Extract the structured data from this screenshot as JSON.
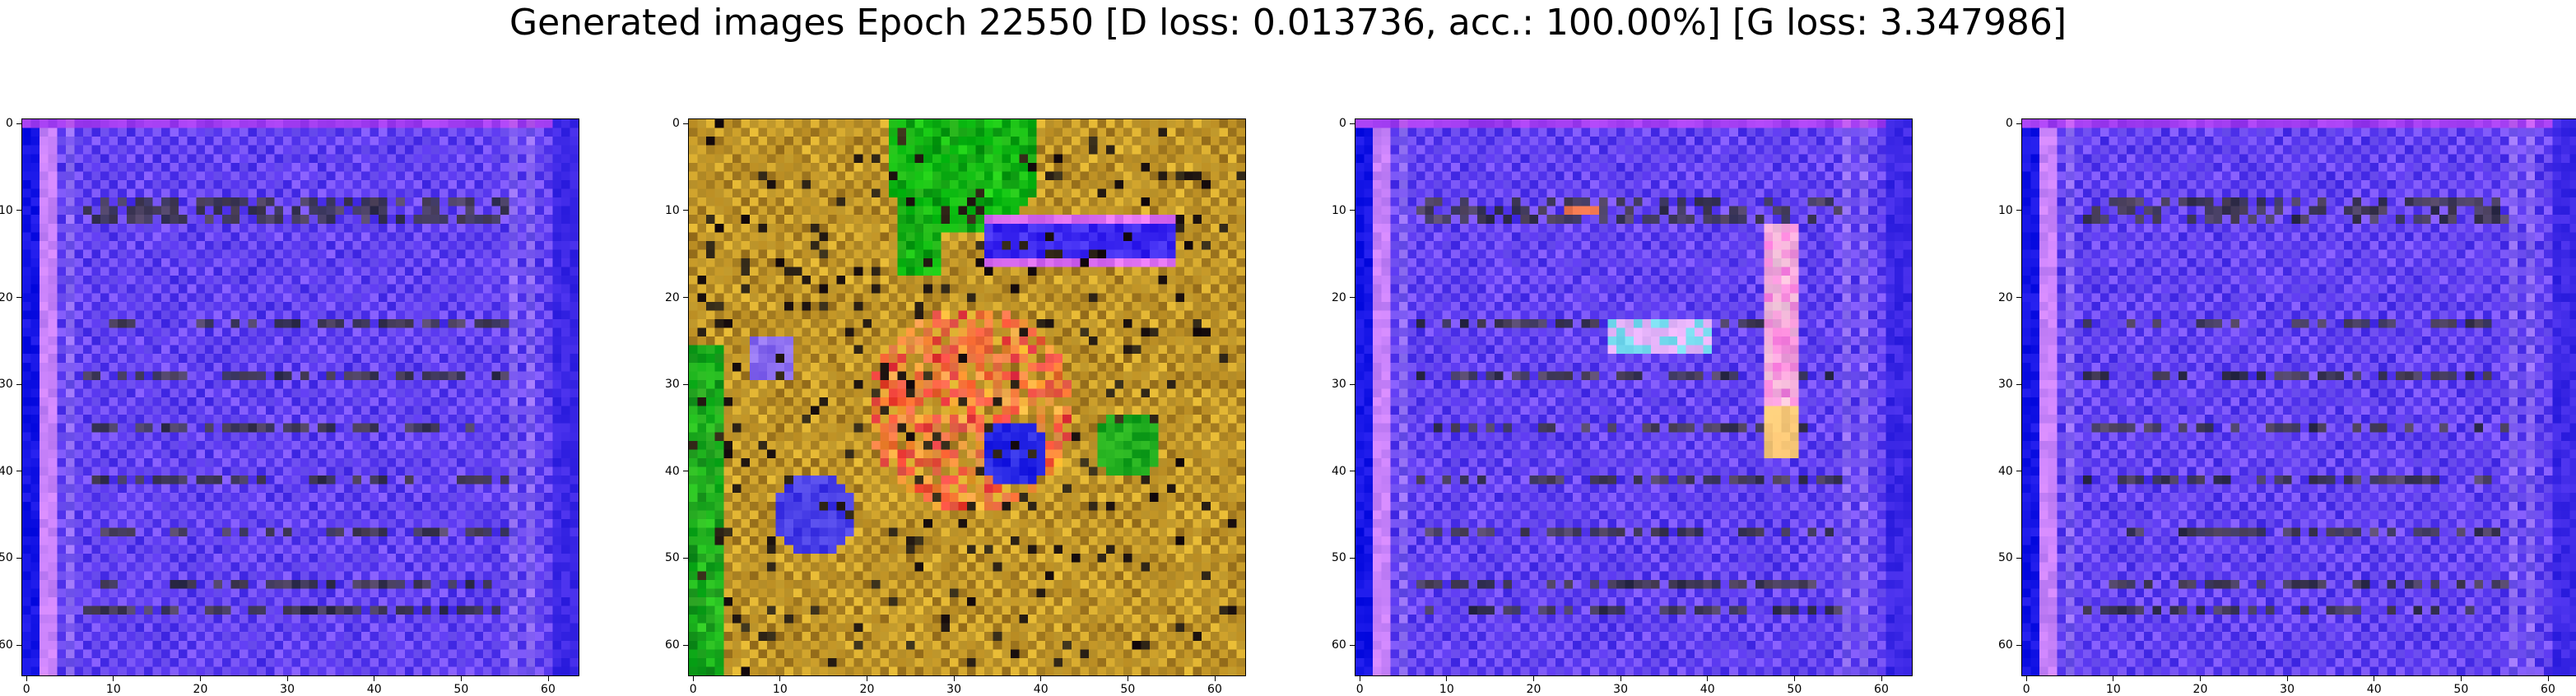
{
  "figure": {
    "title": "Generated images Epoch 22550 [D loss: 0.013736, acc.: 100.00%] [G loss: 3.347986]"
  },
  "panels": [
    {
      "id": "sample-1",
      "palette": "blue-violet",
      "dominant_color": "#5a3cf0",
      "content": "noisy generated image with dark horizontal streaks on blue/violet field"
    },
    {
      "id": "sample-2",
      "palette": "multicolor",
      "dominant_color": "#c8962a",
      "content": "noisy generated image with green, red, orange and blue blobs on ochre field"
    },
    {
      "id": "sample-3",
      "palette": "blue-violet",
      "dominant_color": "#5a3cf0",
      "content": "noisy generated image with dark horizontal streaks and a magenta/cyan bar"
    },
    {
      "id": "sample-4",
      "palette": "blue-violet",
      "dominant_color": "#5a3cf0",
      "content": "noisy generated image with dark horizontal streaks on blue/violet field"
    }
  ],
  "axes": {
    "x_ticks": [
      "0",
      "10",
      "20",
      "30",
      "40",
      "50",
      "60"
    ],
    "y_ticks": [
      "0",
      "10",
      "20",
      "30",
      "40",
      "50",
      "60"
    ],
    "extent": [
      -0.5,
      63.5
    ]
  }
}
